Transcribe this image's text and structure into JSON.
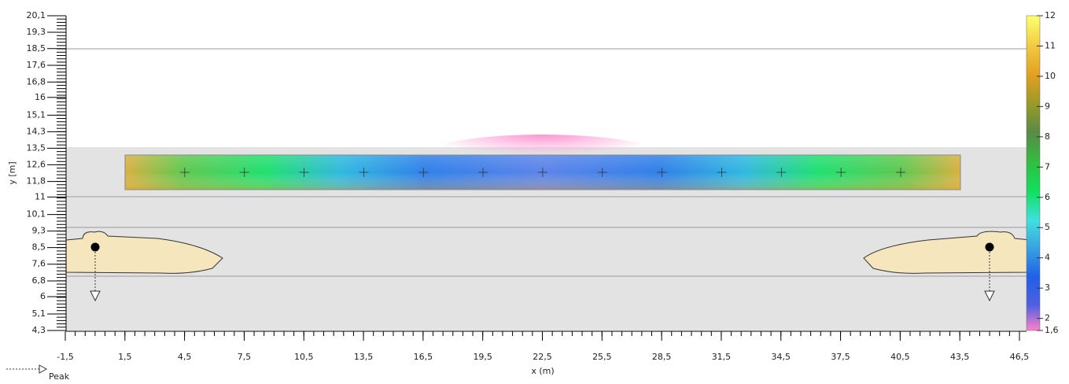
{
  "chart_data": {
    "type": "heatmap",
    "xlabel": "x (m)",
    "ylabel": "y [m]",
    "xlim": [
      -1.5,
      46.5
    ],
    "xticks": [
      {
        "value": -1.5,
        "label": "-1,5"
      },
      {
        "value": 1.5,
        "label": "1,5"
      },
      {
        "value": 4.5,
        "label": "4,5"
      },
      {
        "value": 7.5,
        "label": "7,5"
      },
      {
        "value": 10.5,
        "label": "10,5"
      },
      {
        "value": 13.5,
        "label": "13,5"
      },
      {
        "value": 16.5,
        "label": "16,5"
      },
      {
        "value": 19.5,
        "label": "19,5"
      },
      {
        "value": 22.5,
        "label": "22,5"
      },
      {
        "value": 25.5,
        "label": "25,5"
      },
      {
        "value": 28.5,
        "label": "28,5"
      },
      {
        "value": 31.5,
        "label": "31,5"
      },
      {
        "value": 34.5,
        "label": "34,5"
      },
      {
        "value": 37.5,
        "label": "37,5"
      },
      {
        "value": 40.5,
        "label": "40,5"
      },
      {
        "value": 43.5,
        "label": "43,5"
      },
      {
        "value": 46.5,
        "label": "46,5"
      }
    ],
    "ylim": [
      4.3,
      20.1
    ],
    "yticks": [
      {
        "value": 4.3,
        "label": "4,3"
      },
      {
        "value": 5.13,
        "label": "5,1"
      },
      6,
      {
        "value": 6.79,
        "label": "6,8"
      },
      {
        "value": 7.63,
        "label": "7,6"
      },
      {
        "value": 8.46,
        "label": "8,5"
      },
      {
        "value": 9.29,
        "label": "9,3"
      },
      {
        "value": 10.12,
        "label": "10,1"
      },
      11,
      {
        "value": 11.78,
        "label": "11,8"
      },
      {
        "value": 12.62,
        "label": "12,6"
      },
      {
        "value": 13.45,
        "label": "13,5"
      },
      {
        "value": 14.28,
        "label": "14,3"
      },
      {
        "value": 15.11,
        "label": "15,1"
      },
      16,
      {
        "value": 16.77,
        "label": "16,8"
      },
      {
        "value": 17.61,
        "label": "17,6"
      },
      {
        "value": 18.45,
        "label": "18,5"
      },
      {
        "value": 19.27,
        "label": "19,3"
      },
      {
        "value": 20.1,
        "label": "20,1"
      }
    ],
    "colorbar": {
      "lim": [
        1.6,
        12
      ],
      "ticks": [
        12,
        11,
        10,
        9,
        8,
        7,
        6,
        5,
        4,
        3,
        2,
        {
          "value": 1.6,
          "label": "1,6"
        }
      ]
    },
    "legend": {
      "label": "Peak"
    }
  }
}
